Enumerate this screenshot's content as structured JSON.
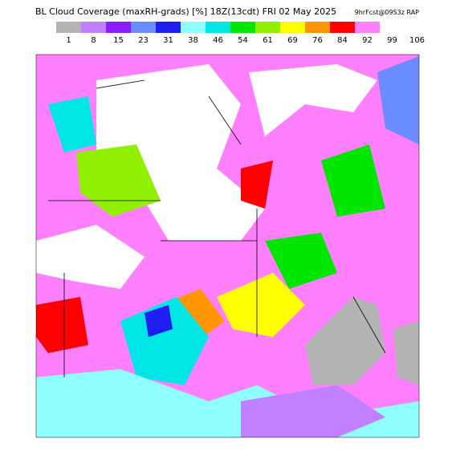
{
  "header": {
    "title": "BL Cloud Coverage (maxRH-grads) [%] 18Z(13cdt) FRI 02 May 2025",
    "run": "9hrFcst@09S3z RAP"
  },
  "legend": {
    "labels": [
      "1",
      "8",
      "15",
      "23",
      "31",
      "38",
      "46",
      "54",
      "61",
      "69",
      "76",
      "84",
      "92",
      "99",
      "106"
    ],
    "colors": [
      "#b4b4b4",
      "#c080ff",
      "#8c1cff",
      "#6a8cff",
      "#1e1ef0",
      "#90ffff",
      "#00e6e6",
      "#00e600",
      "#90f000",
      "#ffff00",
      "#ff9600",
      "#ff0000",
      "#ff80ff",
      "#ffffff",
      "#ffffff"
    ]
  }
}
